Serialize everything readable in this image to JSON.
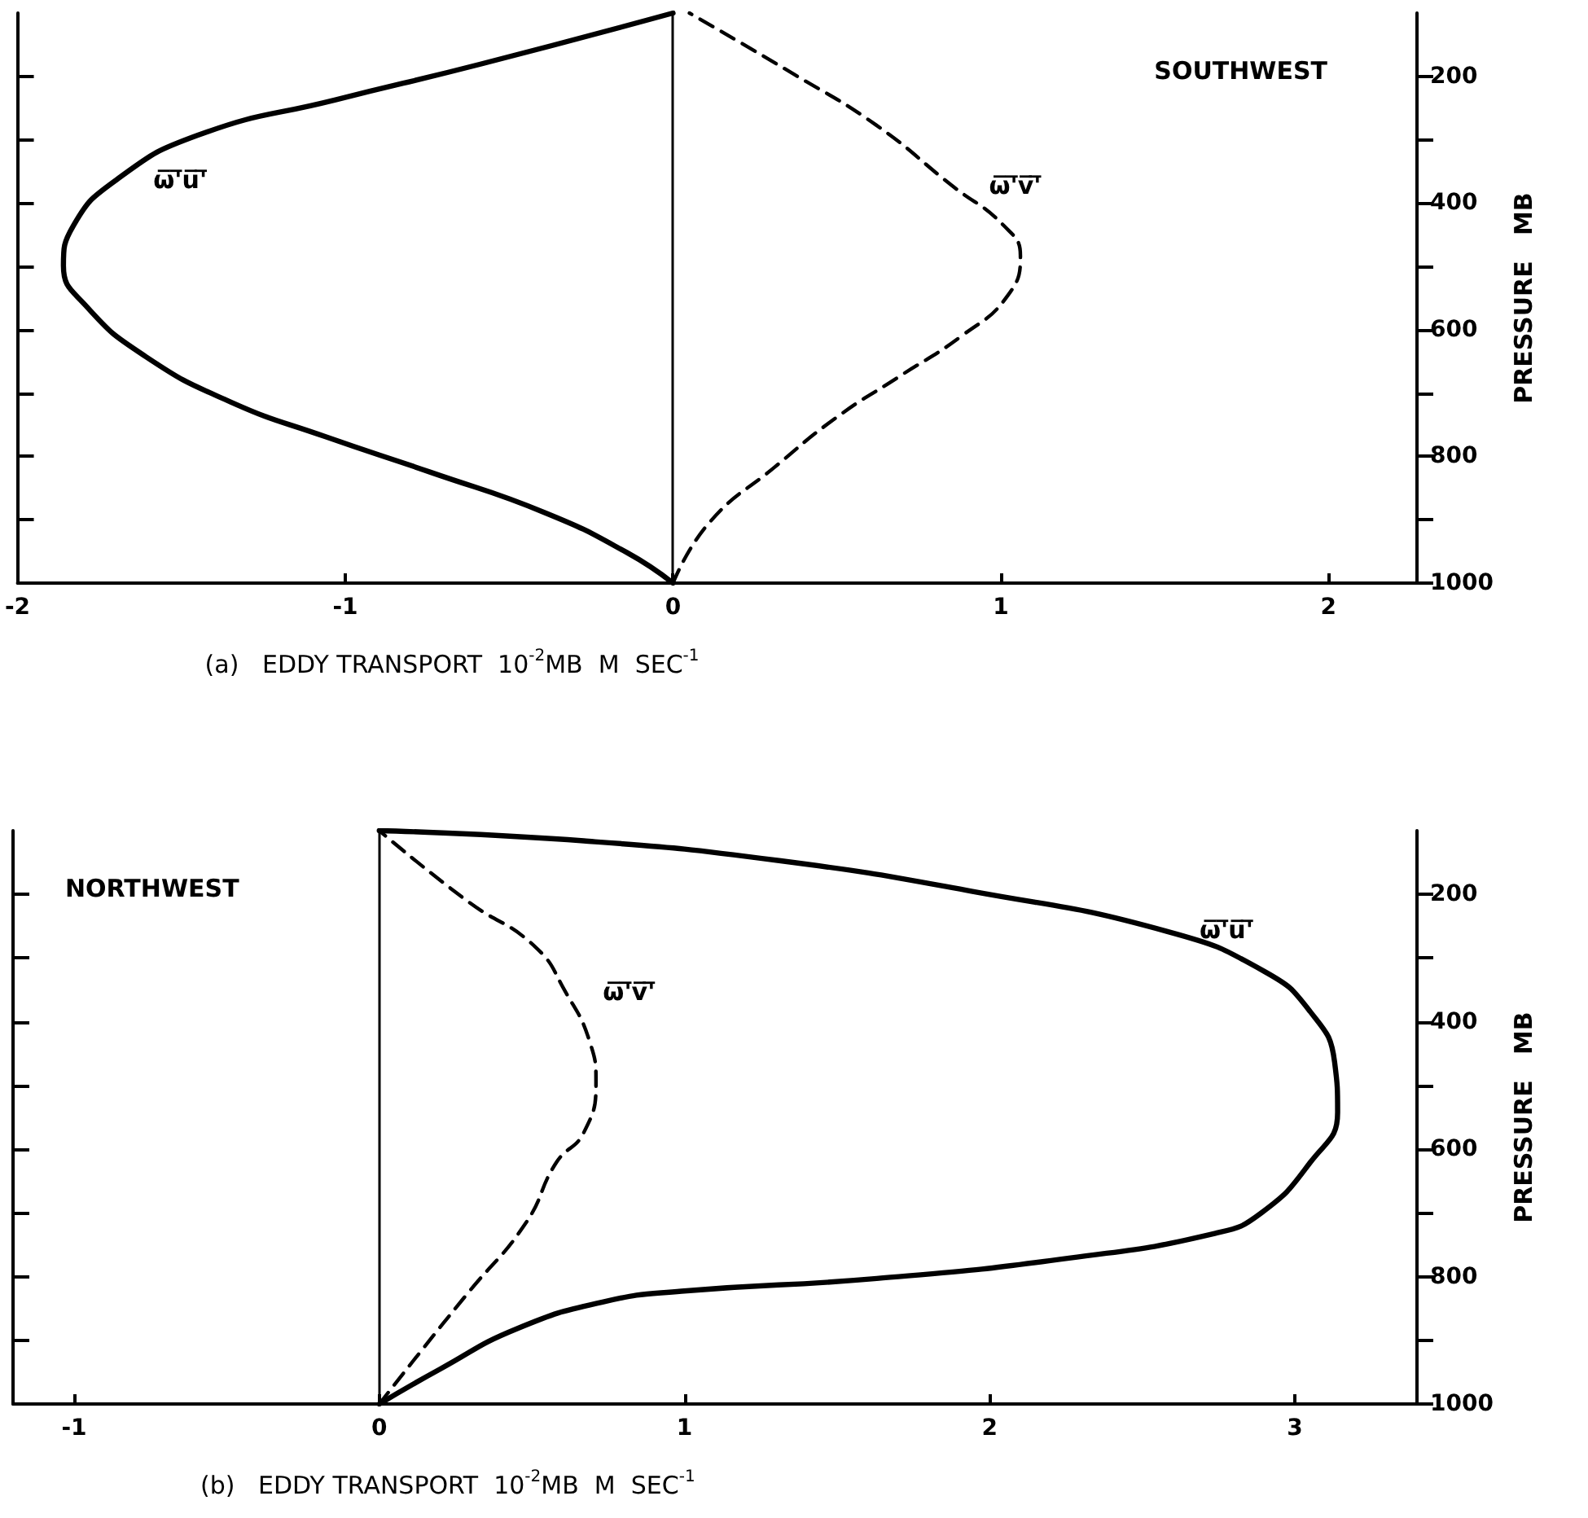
{
  "chart_data": [
    {
      "type": "line",
      "xlabel": "(a)   EDDY TRANSPORT  10$^{-2}$MB  M  SEC$^{-1}$",
      "ylabel": "PRESSURE   MB",
      "annotations": [
        "SOUTHWEST"
      ],
      "xlim": [
        -2,
        2.27
      ],
      "xticks": [
        -2,
        -1,
        0,
        1,
        2
      ],
      "ylim": [
        1000,
        100
      ],
      "yticks": [
        200,
        {
          "value": 300,
          "label": null
        },
        400,
        {
          "value": 500,
          "label": null
        },
        600,
        {
          "value": 700,
          "label": null
        },
        800,
        {
          "value": 900,
          "label": null
        },
        1000
      ],
      "grid": false,
      "legend": false,
      "marker": "none",
      "ref_lines": [
        {
          "axis": "x",
          "value": 0,
          "color": "#000000",
          "line_style": "solid"
        }
      ],
      "series": [
        {
          "name": "ω̅'̅u̅'̅",
          "color": "#000000",
          "line_style": "solid",
          "x": [
            0,
            -0.14,
            -0.39,
            -0.74,
            -1.06,
            -1.35,
            -1.61,
            -1.79,
            -1.86,
            -1.83,
            -1.7,
            -1.45,
            -1.03,
            -0.59,
            0
          ],
          "values": [
            1000,
            952,
            889,
            825,
            769,
            714,
            642,
            563,
            499,
            436,
            364,
            293,
            237,
            181,
            100
          ]
        },
        {
          "name": "ω̅'̅v̅'̅",
          "color": "#000000",
          "line_style": "dashed",
          "x": [
            0,
            0.11,
            0.31,
            0.5,
            0.69,
            0.88,
            1.02,
            1.06,
            1.01,
            0.85,
            0.62,
            0.37,
            0.05
          ],
          "values": [
            1000,
            905,
            817,
            738,
            674,
            610,
            547,
            483,
            436,
            372,
            277,
            197,
            100
          ]
        }
      ]
    },
    {
      "type": "line",
      "xlabel": "(b)   EDDY TRANSPORT  10$^{-2}$MB  M  SEC$^{-1}$",
      "ylabel": "PRESSURE   MB",
      "annotations": [
        "NORTHWEST"
      ],
      "xlim": [
        -1.2,
        3.4
      ],
      "xticks": [
        -1,
        0,
        1,
        2,
        3
      ],
      "ylim": [
        1000,
        100
      ],
      "yticks": [
        200,
        {
          "value": 300,
          "label": null
        },
        400,
        {
          "value": 500,
          "label": null
        },
        600,
        {
          "value": 700,
          "label": null
        },
        800,
        {
          "value": 900,
          "label": null
        },
        1000
      ],
      "grid": false,
      "legend": false,
      "marker": "none",
      "ref_lines": [
        {
          "axis": "x",
          "value": 0,
          "color": "#000000",
          "line_style": "solid"
        }
      ],
      "series": [
        {
          "name": "ω̅'̅u̅'̅",
          "color": "#000000",
          "line_style": "solid",
          "x": [
            0,
            0.2,
            0.45,
            0.74,
            0.99,
            1.63,
            2.26,
            2.74,
            2.89,
            3.05,
            3.14,
            3.13,
            3.05,
            2.9,
            2.58,
            1.94,
            1.31,
            0.67,
            0
          ],
          "values": [
            1000,
            945,
            882,
            839,
            823,
            803,
            771,
            732,
            700,
            621,
            542,
            463,
            384,
            321,
            258,
            195,
            147,
            116,
            100
          ]
        },
        {
          "name": "ω̅'̅v̅'̅",
          "color": "#000000",
          "line_style": "dashed",
          "x": [
            0,
            0.13,
            0.29,
            0.48,
            0.58,
            0.67,
            0.71,
            0.69,
            0.61,
            0.51,
            0.29,
            0
          ],
          "values": [
            1000,
            921,
            826,
            716,
            621,
            574,
            495,
            432,
            353,
            282,
            211,
            100
          ]
        }
      ]
    }
  ]
}
